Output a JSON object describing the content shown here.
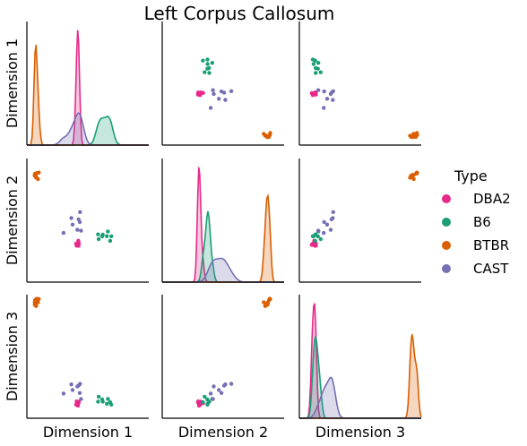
{
  "chart_data": {
    "type": "scatter",
    "title": "Left Corpus Callosum",
    "variables": [
      "Dimension 1",
      "Dimension 2",
      "Dimension 3"
    ],
    "legend": {
      "title": "Type",
      "placement": "right",
      "entries": [
        {
          "name": "DBA2",
          "color": "#e7298a"
        },
        {
          "name": "B6",
          "color": "#1b9e77"
        },
        {
          "name": "BTBR",
          "color": "#d95f02"
        },
        {
          "name": "CAST",
          "color": "#7570b3"
        }
      ]
    },
    "grid": false,
    "ranges": {
      "Dimension 1": [
        0,
        100
      ],
      "Dimension 2": [
        0,
        100
      ],
      "Dimension 3": [
        0,
        100
      ]
    },
    "series": [
      {
        "name": "DBA2",
        "color": "#e7298a",
        "points": [
          [
            40.8,
            29.5,
            13.6
          ],
          [
            41.7,
            30.5,
            12.3
          ],
          [
            42.5,
            29.5,
            13.0
          ],
          [
            42.0,
            30.2,
            10.2
          ],
          [
            41.3,
            30.3,
            11.3
          ],
          [
            41.8,
            30.3,
            10.3
          ],
          [
            42.2,
            33.5,
            12.2
          ],
          [
            42.6,
            31.6,
            13.5
          ],
          [
            40.4,
            31.1,
            11.0
          ],
          [
            42.0,
            29.5,
            12.6
          ]
        ]
      },
      {
        "name": "B6",
        "color": "#1b9e77",
        "points": [
          [
            69.3,
            37.1,
            11.0
          ],
          [
            58.4,
            38.6,
            13.4
          ],
          [
            61.8,
            37.0,
            15.2
          ],
          [
            66.5,
            41.0,
            15.6
          ],
          [
            65.6,
            37.2,
            11.7
          ],
          [
            62.3,
            38.4,
            13.4
          ],
          [
            58.9,
            34.8,
            17.5
          ],
          [
            68.3,
            33.4,
            13.0
          ]
        ]
      },
      {
        "name": "BTBR",
        "color": "#d95f02",
        "points": [
          [
            6.5,
            86.1,
            91.8
          ],
          [
            6.9,
            86.6,
            92.4
          ],
          [
            7.3,
            85.6,
            91.5
          ],
          [
            7.6,
            85.3,
            92.8
          ],
          [
            6.5,
            86.8,
            93.8
          ],
          [
            7.6,
            84.5,
            90.8
          ],
          [
            8.1,
            88.2,
            96.7
          ],
          [
            6.7,
            87.6,
            95.6
          ],
          [
            9.8,
            88.6,
            96.4
          ],
          [
            9.1,
            83.3,
            93.8
          ]
        ]
      },
      {
        "name": "CAST",
        "color": "#7570b3",
        "points": [
          [
            36.5,
            51.8,
            27.4
          ],
          [
            43.4,
            48.6,
            20.4
          ],
          [
            41.4,
            42.3,
            25.7
          ],
          [
            30.1,
            39.8,
            20.0
          ],
          [
            37.5,
            46.5,
            22.8
          ],
          [
            44.4,
            41.6,
            15.5
          ],
          [
            42.4,
            50.8,
            26.4
          ],
          [
            43.6,
            56.7,
            27.8
          ]
        ]
      }
    ]
  }
}
